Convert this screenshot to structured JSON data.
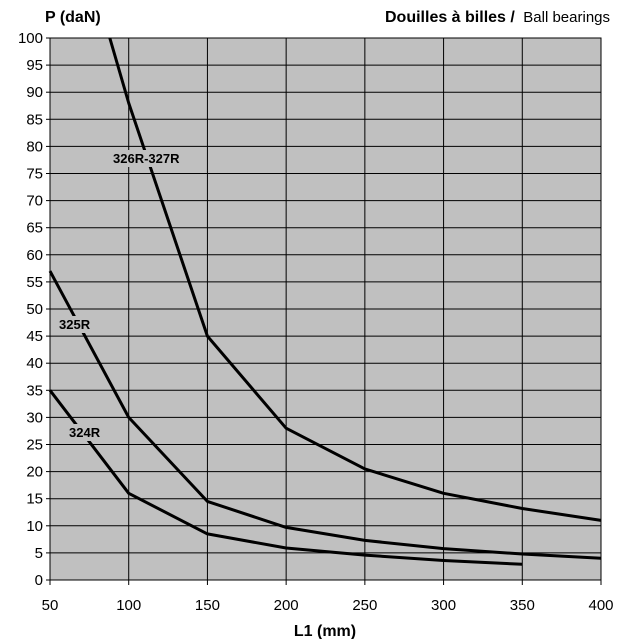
{
  "header": {
    "ylabel": "P (daN)",
    "title_bold": "Douilles à billes /",
    "title_normal": "Ball bearings"
  },
  "chart_data": {
    "type": "line",
    "title": "Douilles à billes / Ball bearings",
    "xlabel": "L1 (mm)",
    "ylabel": "P (daN)",
    "xlim": [
      50,
      400
    ],
    "ylim": [
      0,
      100
    ],
    "x_ticks": [
      50,
      100,
      150,
      200,
      250,
      300,
      350,
      400
    ],
    "y_ticks": [
      0,
      5,
      10,
      15,
      20,
      25,
      30,
      35,
      40,
      45,
      50,
      55,
      60,
      65,
      70,
      75,
      80,
      85,
      90,
      95,
      100
    ],
    "grid": true,
    "background": "#c0c0c0",
    "line_color": "#000000",
    "series": [
      {
        "name": "326R-327R",
        "x": [
          88,
          100,
          150,
          200,
          250,
          300,
          350,
          400
        ],
        "values": [
          100,
          88,
          45,
          28,
          20.5,
          16,
          13.2,
          11
        ]
      },
      {
        "name": "325R",
        "x": [
          50,
          100,
          150,
          200,
          250,
          300,
          350,
          400
        ],
        "values": [
          57,
          30,
          14.5,
          9.7,
          7.3,
          5.8,
          4.8,
          4
        ]
      },
      {
        "name": "324R",
        "x": [
          50,
          100,
          150,
          200,
          250,
          300,
          350
        ],
        "values": [
          35,
          16,
          8.5,
          5.9,
          4.6,
          3.6,
          2.9
        ]
      }
    ]
  }
}
